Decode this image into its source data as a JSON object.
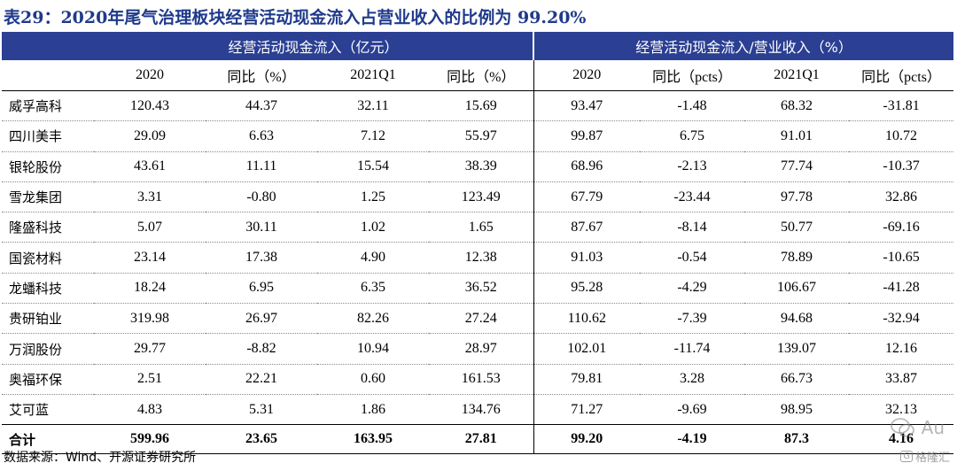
{
  "title": "表29：2020年尾气治理板块经营活动现金流入占营业收入的比例为 99.20%",
  "groups": {
    "left": "经营活动现金流入（亿元）",
    "right": "经营活动现金流入/营业收入（%）"
  },
  "columns": [
    "",
    "2020",
    "同比（%）",
    "2021Q1",
    "同比（%）",
    "2020",
    "同比（pcts）",
    "2021Q1",
    "同比（pcts）"
  ],
  "rows": [
    [
      "威孚高科",
      "120.43",
      "44.37",
      "32.11",
      "15.69",
      "93.47",
      "-1.48",
      "68.32",
      "-31.81"
    ],
    [
      "四川美丰",
      "29.09",
      "6.63",
      "7.12",
      "55.97",
      "99.87",
      "6.75",
      "91.01",
      "10.72"
    ],
    [
      "银轮股份",
      "43.61",
      "11.11",
      "15.54",
      "38.39",
      "68.96",
      "-2.13",
      "77.74",
      "-10.37"
    ],
    [
      "雪龙集团",
      "3.31",
      "-0.80",
      "1.25",
      "123.49",
      "67.79",
      "-23.44",
      "97.78",
      "32.86"
    ],
    [
      "隆盛科技",
      "5.07",
      "30.11",
      "1.02",
      "1.65",
      "87.67",
      "-8.14",
      "50.77",
      "-69.16"
    ],
    [
      "国瓷材料",
      "23.14",
      "17.38",
      "4.90",
      "12.38",
      "91.03",
      "-0.54",
      "78.89",
      "-10.65"
    ],
    [
      "龙蟠科技",
      "18.24",
      "6.95",
      "6.35",
      "36.52",
      "95.28",
      "-4.29",
      "106.67",
      "-41.28"
    ],
    [
      "贵研铂业",
      "319.98",
      "26.97",
      "82.26",
      "27.24",
      "110.62",
      "-7.39",
      "94.68",
      "-32.94"
    ],
    [
      "万润股份",
      "29.77",
      "-8.82",
      "10.94",
      "28.97",
      "102.01",
      "-11.74",
      "139.07",
      "12.16"
    ],
    [
      "奥福环保",
      "2.51",
      "22.21",
      "0.60",
      "161.53",
      "79.81",
      "3.28",
      "66.73",
      "33.87"
    ],
    [
      "艾可蓝",
      "4.83",
      "5.31",
      "1.86",
      "134.76",
      "71.27",
      "-9.69",
      "98.95",
      "32.13"
    ]
  ],
  "total": [
    "合计",
    "599.96",
    "23.65",
    "163.95",
    "27.81",
    "99.20",
    "-4.19",
    "87.3",
    "4.16"
  ],
  "source": "数据来源：Wind、开源证券研究所",
  "watermark": "Au",
  "watermark_small": "格隆汇",
  "watermark_badge": "G"
}
